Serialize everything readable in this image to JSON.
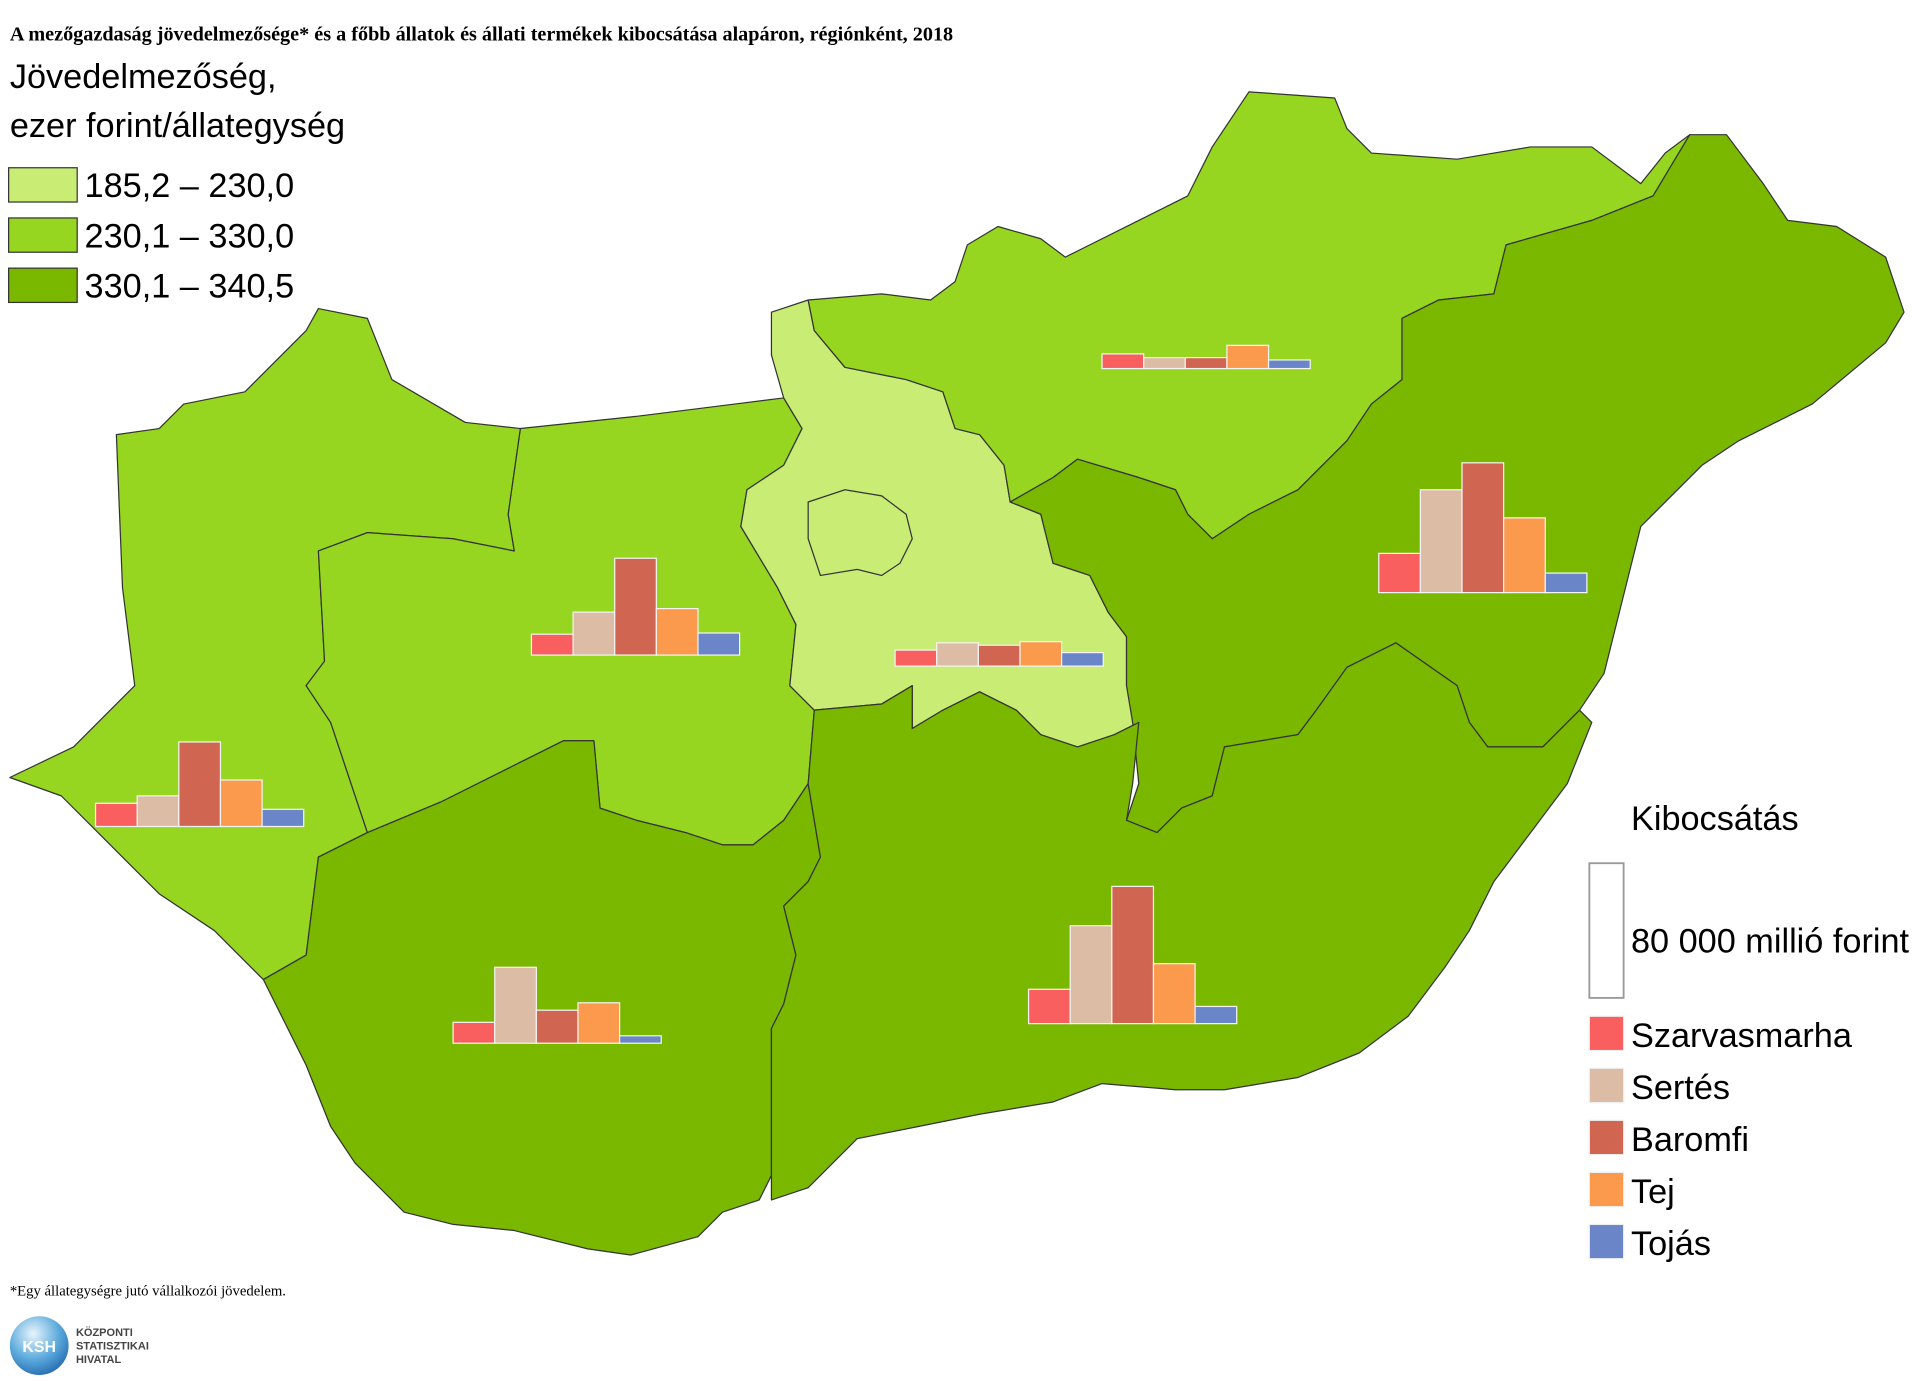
{
  "chart_data": {
    "type": "map",
    "title": "A mezőgazdaság jövedelmezősége* és a főbb állatok és állati termékek kibocsátása alapáron, régiónként, 2018",
    "legend_title": [
      "Jövedelmezőség,",
      "ezer forint/állategység"
    ],
    "classes": [
      {
        "label": "185,2 – 230,0",
        "color": "#c8ec74"
      },
      {
        "label": "230,1 – 330,0",
        "color": "#97d620"
      },
      {
        "label": "330,1 – 340,5",
        "color": "#7ab800"
      }
    ],
    "bar_legend_title": "Kibocsátás",
    "scale": {
      "value": 80000,
      "label": "80 000 millió forint"
    },
    "series": [
      {
        "name": "Szarvasmarha",
        "color": "#f95f5f"
      },
      {
        "name": "Sertés",
        "color": "#dcbca4"
      },
      {
        "name": "Baromfi",
        "color": "#d06552"
      },
      {
        "name": "Tej",
        "color": "#fb9a4c"
      },
      {
        "name": "Tojás",
        "color": "#6a86c8"
      }
    ],
    "regions": [
      {
        "color": "#97d620",
        "values": [
          13800,
          18200,
          50200,
          27600,
          10200
        ]
      },
      {
        "color": "#97d620",
        "values": [
          12400,
          25500,
          57500,
          27600,
          13100
        ]
      },
      {
        "color": "#7ab800",
        "values": [
          12400,
          45100,
          19600,
          24000,
          4400
        ]
      },
      {
        "color": "#c8ec74",
        "values": [
          9500,
          13800,
          12400,
          14500,
          8000
        ]
      },
      {
        "color": "#97d620",
        "values": [
          8700,
          6500,
          6500,
          13800,
          5100
        ]
      },
      {
        "color": "#7ab800",
        "values": [
          23300,
          61100,
          77100,
          44400,
          11600
        ]
      },
      {
        "color": "#7ab800",
        "values": [
          20400,
          58200,
          81500,
          35600,
          10200
        ]
      }
    ],
    "footnote": "*Egy állategységre jutó vállalkozói jövedelem."
  },
  "logo": {
    "abbr": "KSH",
    "lines": [
      "KÖZPONTI",
      "STATISZTIKAI",
      "HIVATAL"
    ]
  }
}
